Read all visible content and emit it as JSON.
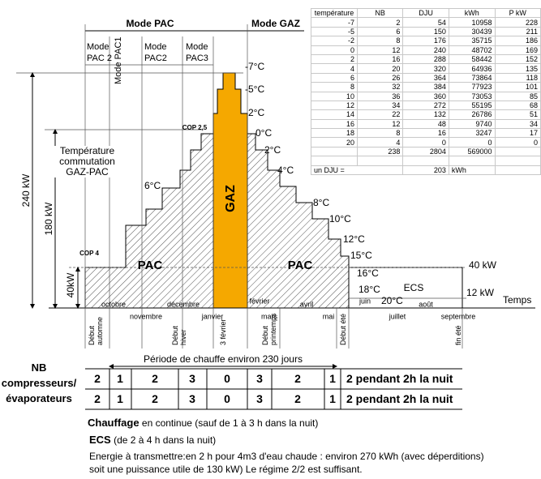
{
  "header": {
    "mode_pac": "Mode PAC",
    "mode_gaz": "Mode GAZ"
  },
  "modes": [
    {
      "title": "Mode",
      "name": "PAC 2"
    },
    {
      "title": "Mode",
      "name": "PAC1"
    },
    {
      "title": "Mode",
      "name": "PAC2"
    },
    {
      "title": "Mode",
      "name": "PAC3"
    }
  ],
  "temperatures": [
    "-7°C",
    "-5°C",
    "-2°C",
    "0°C",
    "2°C",
    "4°C",
    "6°C",
    "8°C",
    "10°C",
    "12°C",
    "15°C",
    "16°C",
    "18°C",
    "20°C"
  ],
  "cop": [
    "COP 2,5",
    "COP 4"
  ],
  "commutation": "Température commutation GAZ-PAC",
  "zones": {
    "gaz": "GAZ",
    "pac_left": "PAC",
    "pac_right": "PAC",
    "ecs": "ECS"
  },
  "power": {
    "p240": "240 kW",
    "p180": "180 kW",
    "p40_left": "40kW",
    "p40_right": "40 kW",
    "p12": "12 kW"
  },
  "axis_label": "Temps",
  "months": [
    "octobre",
    "novembre",
    "décembre",
    "janvier",
    "février",
    "mars",
    "avril",
    "mai",
    "juin",
    "juillet",
    "août",
    "septembre"
  ],
  "markers": [
    "Début automne",
    "Début hiver",
    "3 février",
    "Début printemps",
    "Début été",
    "fin été"
  ],
  "period": "Période de chauffe environ 230 jours",
  "nb": {
    "label": "NB compresseurs/ évaporateurs",
    "rows": [
      [
        2,
        1,
        2,
        3,
        0,
        3,
        2,
        1,
        "2 pendant 2h la nuit"
      ],
      [
        2,
        1,
        2,
        3,
        0,
        3,
        2,
        1,
        "2 pendant 2h la nuit"
      ]
    ]
  },
  "notes": [
    {
      "bold": "Chauffage",
      "text": "en continue (sauf de 1 à 3 h dans la nuit)"
    },
    {
      "bold": "ECS",
      "text": "(de 2 à 4 h dans la nuit)"
    }
  ],
  "notes_lines": [
    "Energie à transmettre:en 2 h pour 4m3 d'eau chaude : environ 270 kWh  (avec déperditions)",
    "soit une puissance utile de 130 kW) Le régime 2/2  est suffisant."
  ],
  "table": {
    "columns": [
      "température",
      "NB",
      "DJU",
      "kWh",
      "P kW"
    ],
    "rows": [
      [
        -7,
        2,
        54,
        10958,
        228
      ],
      [
        -5,
        6,
        150,
        30439,
        211
      ],
      [
        -2,
        8,
        176,
        35715,
        186
      ],
      [
        0,
        12,
        240,
        48702,
        169
      ],
      [
        2,
        16,
        288,
        58442,
        152
      ],
      [
        4,
        20,
        320,
        64936,
        135
      ],
      [
        6,
        26,
        364,
        73864,
        118
      ],
      [
        8,
        32,
        384,
        77923,
        101
      ],
      [
        10,
        36,
        360,
        73053,
        85
      ],
      [
        12,
        34,
        272,
        55195,
        68
      ],
      [
        14,
        22,
        132,
        26786,
        51
      ],
      [
        16,
        12,
        48,
        9740,
        34
      ],
      [
        18,
        8,
        16,
        3247,
        17
      ],
      [
        20,
        4,
        0,
        0,
        0
      ]
    ],
    "totals": {
      "nb": 238,
      "dju": 2804,
      "kwh": 569000
    },
    "dju_note": {
      "label": "un DJU =",
      "value": 203,
      "unit": "kWh"
    }
  }
}
